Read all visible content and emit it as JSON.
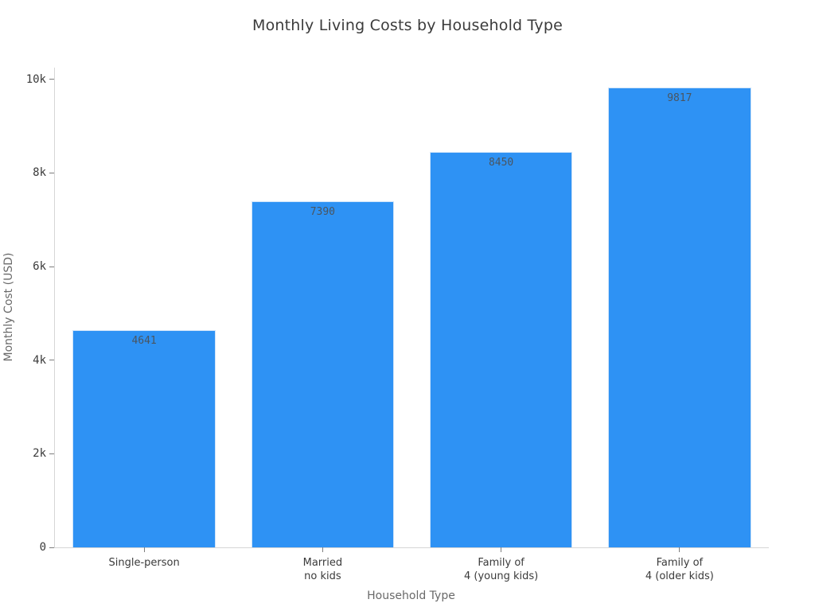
{
  "chart_data": {
    "type": "bar",
    "title": "Monthly Living Costs by Household Type",
    "xlabel": "Household Type",
    "ylabel": "Monthly Cost (USD)",
    "categories": [
      "Single-person",
      "Married\nno kids",
      "Family of\n4 (young kids)",
      "Family of\n4 (older kids)"
    ],
    "values": [
      4641,
      7390,
      8450,
      9817
    ],
    "value_labels": [
      "4641",
      "7390",
      "8450",
      "9817"
    ],
    "ylim": [
      0,
      10250
    ],
    "yticks": [
      {
        "value": 0,
        "label": "0"
      },
      {
        "value": 2000,
        "label": "2k"
      },
      {
        "value": 4000,
        "label": "4k"
      },
      {
        "value": 6000,
        "label": "6k"
      },
      {
        "value": 8000,
        "label": "8k"
      },
      {
        "value": 10000,
        "label": "10k"
      }
    ],
    "grid": false,
    "legend": "none",
    "bar_color": "#2e92f4",
    "bar_border_color": "#cfe4f9",
    "axis_line_color": "#d6d6d6",
    "tick_color": "#7d7d7d",
    "title_color": "#3b3b3b",
    "axis_title_color": "#696969",
    "tick_label_color": "#3a3a3a",
    "value_label_color": "#4a5560",
    "background_color": "#ffffff",
    "bar_band_fraction": 0.8
  }
}
